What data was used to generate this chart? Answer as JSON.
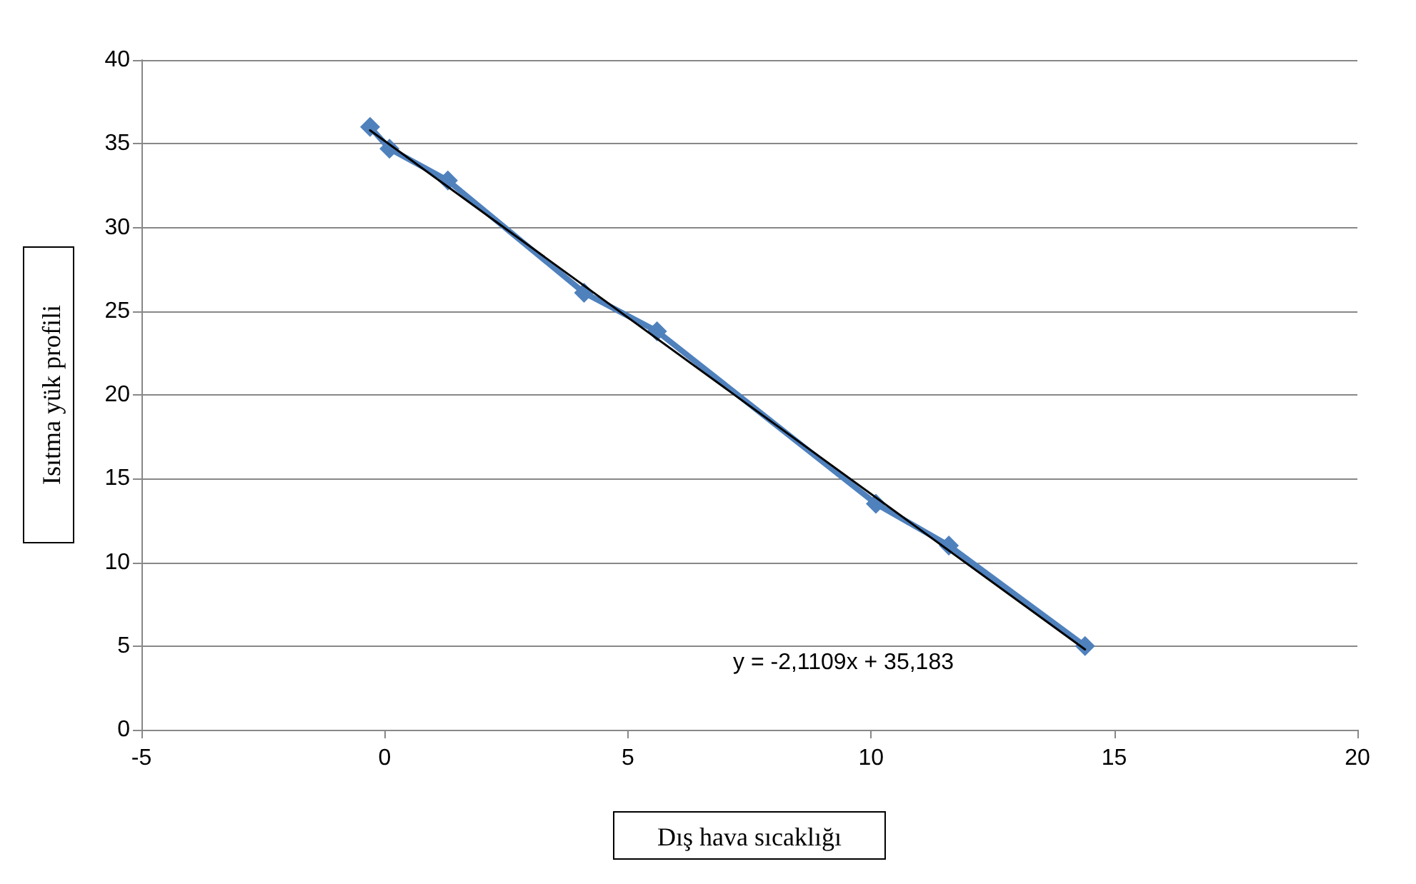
{
  "chart_data": {
    "type": "line",
    "xlabel": "Dış hava sıcaklığı",
    "ylabel": "Isıtma yük profili",
    "xlim": [
      -5,
      20
    ],
    "xticks": [
      -5,
      0,
      5,
      10,
      15,
      20
    ],
    "ylim": [
      0,
      40
    ],
    "yticks": [
      0,
      5,
      10,
      15,
      20,
      25,
      30,
      35,
      40
    ],
    "grid": "y",
    "marker": "diamond",
    "line_style": "solid",
    "series": [
      {
        "color": "#4f81bd",
        "x": [
          -0.3,
          0.1,
          1.3,
          4.1,
          5.6,
          10.1,
          11.6,
          14.4
        ],
        "values": [
          36.0,
          34.7,
          32.8,
          26.1,
          23.8,
          13.5,
          11.0,
          5.0
        ]
      },
      {
        "type": "line",
        "color": "#000000",
        "marker": "none",
        "x": [
          -0.3,
          14.4
        ],
        "values": [
          35.8,
          4.8
        ]
      }
    ],
    "annotations": [
      "y = -2,1109x + 35,183"
    ]
  }
}
